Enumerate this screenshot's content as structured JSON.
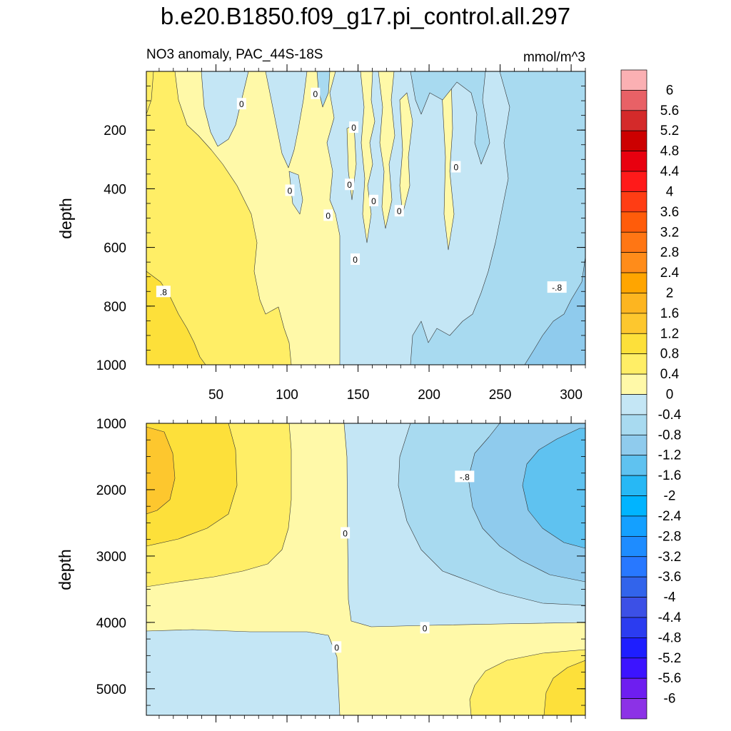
{
  "chart_data": {
    "type": "heatmap",
    "title": "b.e20.B1850.f09_g17.pi_control.all.297",
    "subtitle_left": "NO3 anomaly, PAC_44S-18S",
    "subtitle_right": "mmol/m^3",
    "ylabel": "depth",
    "colorbar": {
      "labels": [
        "6",
        "5.6",
        "5.2",
        "4.8",
        "4.4",
        "4",
        "3.6",
        "3.2",
        "2.8",
        "2.4",
        "2",
        "1.6",
        "1.2",
        "0.8",
        "0.4",
        "0",
        "-0.4",
        "-0.8",
        "-1.2",
        "-1.6",
        "-2",
        "-2.4",
        "-2.8",
        "-3.2",
        "-3.6",
        "-4",
        "-4.4",
        "-4.8",
        "-5.2",
        "-5.6",
        "-6"
      ],
      "colors": [
        "#FBB0B3",
        "#E86166",
        "#D42A2A",
        "#CC0000",
        "#E8000F",
        "#FF1A1A",
        "#FF3D14",
        "#FF5C0A",
        "#FF7614",
        "#FF8C1A",
        "#FFA500",
        "#FDB520",
        "#FDC72E",
        "#FDE03A",
        "#FFEE66",
        "#FFF9A8",
        "#C4E6F5",
        "#A8DAF0",
        "#8FCBED",
        "#5FC2F0",
        "#27B8F5",
        "#00B4FF",
        "#14A0FF",
        "#1E8CFF",
        "#2878FF",
        "#3264EB",
        "#3C50E6",
        "#2B3CF0",
        "#1E1EFF",
        "#3C14FF",
        "#6E1EF0",
        "#8C32E6"
      ]
    },
    "panels": [
      {
        "name": "upper",
        "xlim": [
          1,
          310
        ],
        "ylim": [
          1000,
          0
        ],
        "x_ticks": [
          50,
          100,
          150,
          200,
          250,
          300
        ],
        "y_ticks": [
          200,
          400,
          600,
          800,
          1000
        ],
        "contour_labels": [
          {
            "text": "0",
            "x": 68,
            "y": 110
          },
          {
            "text": "0",
            "x": 120,
            "y": 75
          },
          {
            "text": "0",
            "x": 147,
            "y": 190
          },
          {
            "text": "0",
            "x": 219,
            "y": 325
          },
          {
            "text": "0",
            "x": 102,
            "y": 405
          },
          {
            "text": "0",
            "x": 144,
            "y": 385
          },
          {
            "text": "0",
            "x": 161,
            "y": 440
          },
          {
            "text": "0",
            "x": 179,
            "y": 475
          },
          {
            "text": "0",
            "x": 129,
            "y": 490
          },
          {
            "text": "0",
            "x": 148,
            "y": 640
          },
          {
            "text": ".8",
            "x": 13,
            "y": 750
          },
          {
            "text": "-.8",
            "x": 290,
            "y": 735
          }
        ]
      },
      {
        "name": "lower",
        "xlim": [
          1,
          310
        ],
        "ylim": [
          5400,
          1000
        ],
        "x_ticks": [
          50,
          100,
          150,
          200,
          250,
          300
        ],
        "y_ticks": [
          1000,
          2000,
          3000,
          4000,
          5000
        ],
        "contour_labels": [
          {
            "text": "0",
            "x": 141,
            "y": 2650
          },
          {
            "text": "0",
            "x": 197,
            "y": 4080
          },
          {
            "text": "0",
            "x": 135,
            "y": 4370
          },
          {
            "text": "-.8",
            "x": 225,
            "y": 1800
          }
        ]
      }
    ]
  }
}
